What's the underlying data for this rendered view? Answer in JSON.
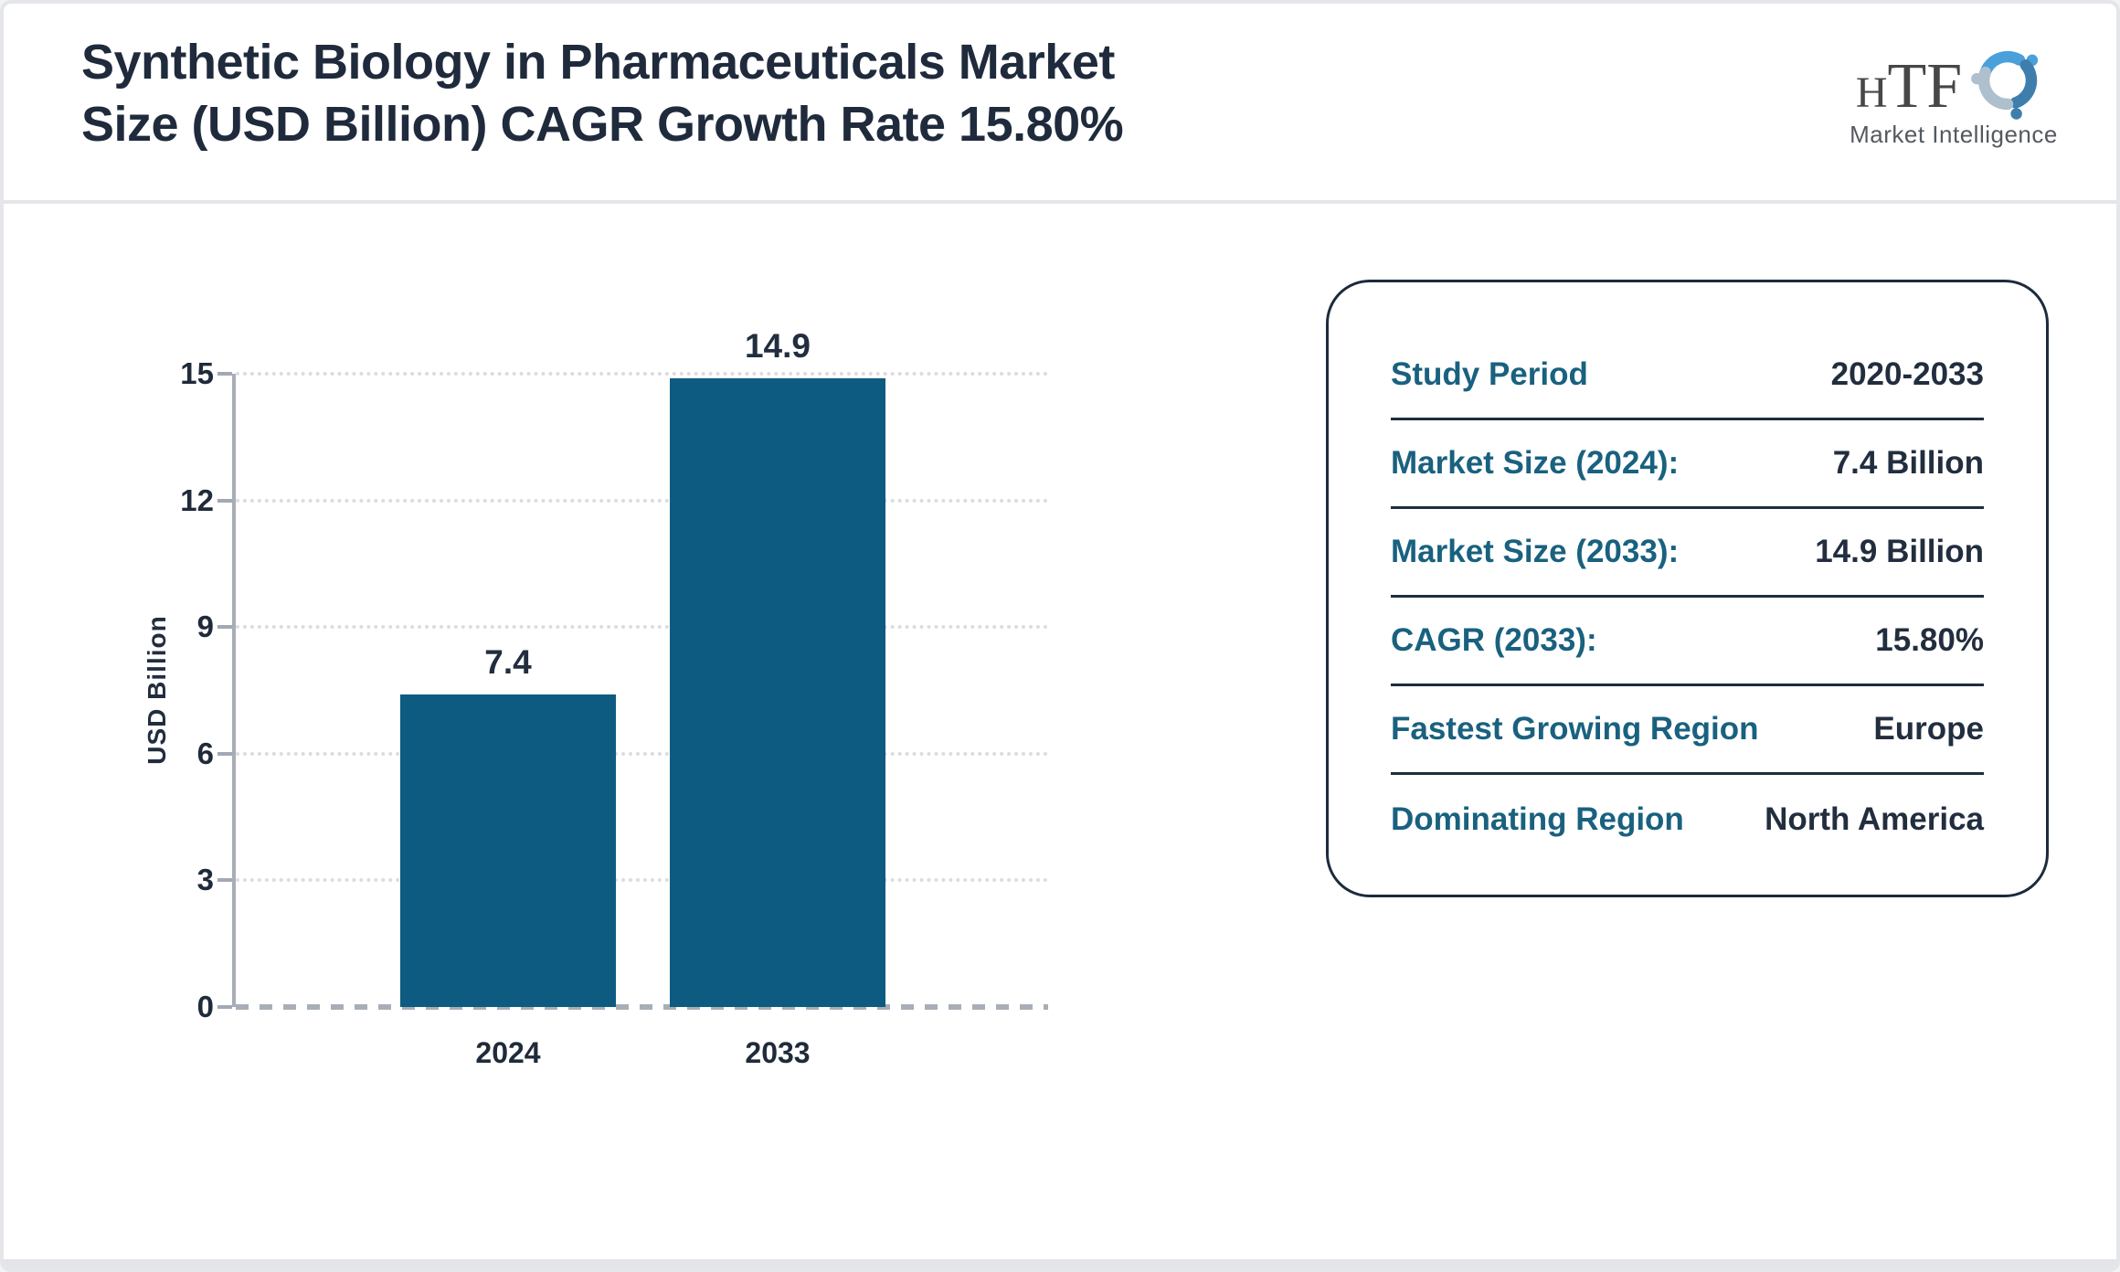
{
  "header": {
    "title_line1": "Synthetic Biology in Pharmaceuticals Market",
    "title_line2": "Size (USD Billion) CAGR Growth Rate 15.80%",
    "logo": {
      "name_h": "H",
      "name_tf": "TF",
      "subtitle": "Market Intelligence"
    }
  },
  "chart_data": {
    "type": "bar",
    "title": "Synthetic Biology in Pharmaceuticals Market Size (USD Billion)",
    "categories": [
      "2024",
      "2033"
    ],
    "values": [
      7.4,
      14.9
    ],
    "value_labels": [
      "7.4",
      "14.9"
    ],
    "xlabel": "",
    "ylabel": "USD Billion",
    "ylim": [
      0,
      15
    ],
    "yticks": [
      0,
      3,
      6,
      9,
      12,
      15
    ],
    "grid": "horizontal-dotted",
    "legend": "none",
    "bar_color": "#0d5b80"
  },
  "info_panel": {
    "rows": [
      {
        "label": "Study Period",
        "value": "2020-2033"
      },
      {
        "label": "Market Size (2024):",
        "value": "7.4 Billion"
      },
      {
        "label": "Market Size (2033):",
        "value": "14.9 Billion"
      },
      {
        "label": "CAGR (2033):",
        "value": "15.80%"
      },
      {
        "label": "Fastest Growing Region",
        "value": "Europe"
      },
      {
        "label": "Dominating Region",
        "value": "North America"
      }
    ]
  },
  "colors": {
    "bar": "#0d5b80",
    "label_teal": "#19617f",
    "text_navy": "#222e3f",
    "axis_gray": "#a7aeb6",
    "gridline": "#dadde0",
    "divider": "#e4e6ea",
    "logo_blue": "#4aa0da",
    "logo_steel": "#3e7ead",
    "logo_gray": "#aec0cd"
  }
}
